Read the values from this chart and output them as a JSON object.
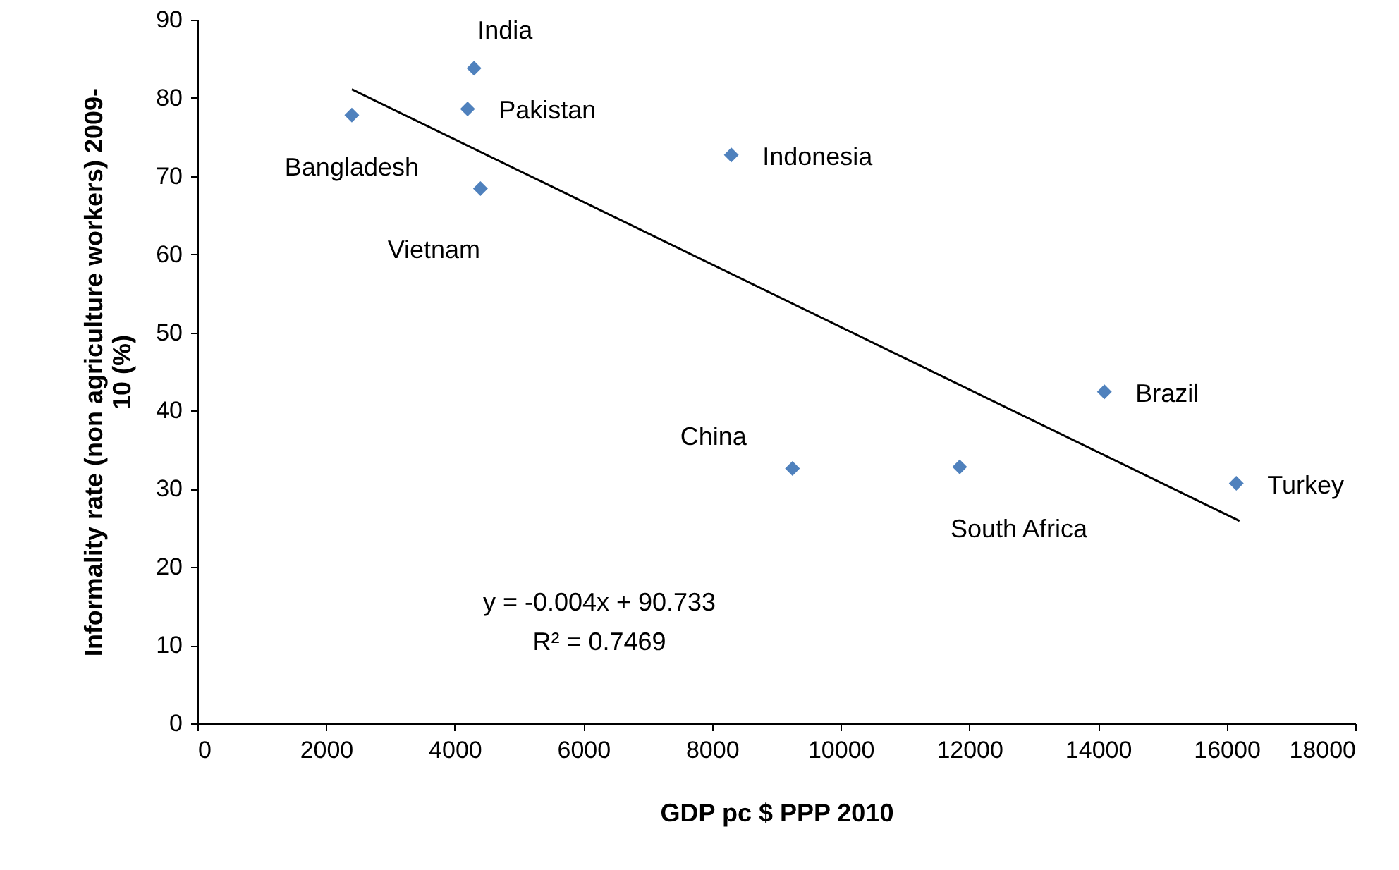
{
  "chart_data": {
    "type": "scatter",
    "xlabel": "GDP pc $ PPP 2010",
    "ylabel": "Informality rate (non agriculture workers) 2009-10 (%)",
    "xlim": [
      0,
      18000
    ],
    "xticks": [
      0,
      2000,
      4000,
      6000,
      8000,
      10000,
      12000,
      14000,
      16000,
      18000
    ],
    "ylim": [
      0,
      90
    ],
    "yticks": [
      0,
      10,
      20,
      30,
      40,
      50,
      60,
      70,
      80,
      90
    ],
    "grid": false,
    "annotations": [
      "y = -0.004x + 90.733",
      "R² = 0.7469"
    ],
    "series": [
      {
        "marker": "diamond",
        "color": "#4f81bd",
        "x": [
          2400,
          4300,
          4200,
          4400,
          8300,
          9250,
          11850,
          14100,
          16150
        ],
        "values": [
          77.8,
          83.8,
          78.6,
          68.4,
          72.7,
          32.6,
          32.8,
          42.4,
          30.7
        ],
        "value_labels": [
          "Bangladesh",
          "India",
          "Pakistan",
          "Vietnam",
          "Indonesia",
          "China",
          "South Africa",
          "Brazil",
          "Turkey"
        ]
      },
      {
        "type": "line",
        "color": "#000000",
        "x": [
          2400,
          16200
        ],
        "values": [
          81.1,
          25.9
        ]
      }
    ]
  }
}
